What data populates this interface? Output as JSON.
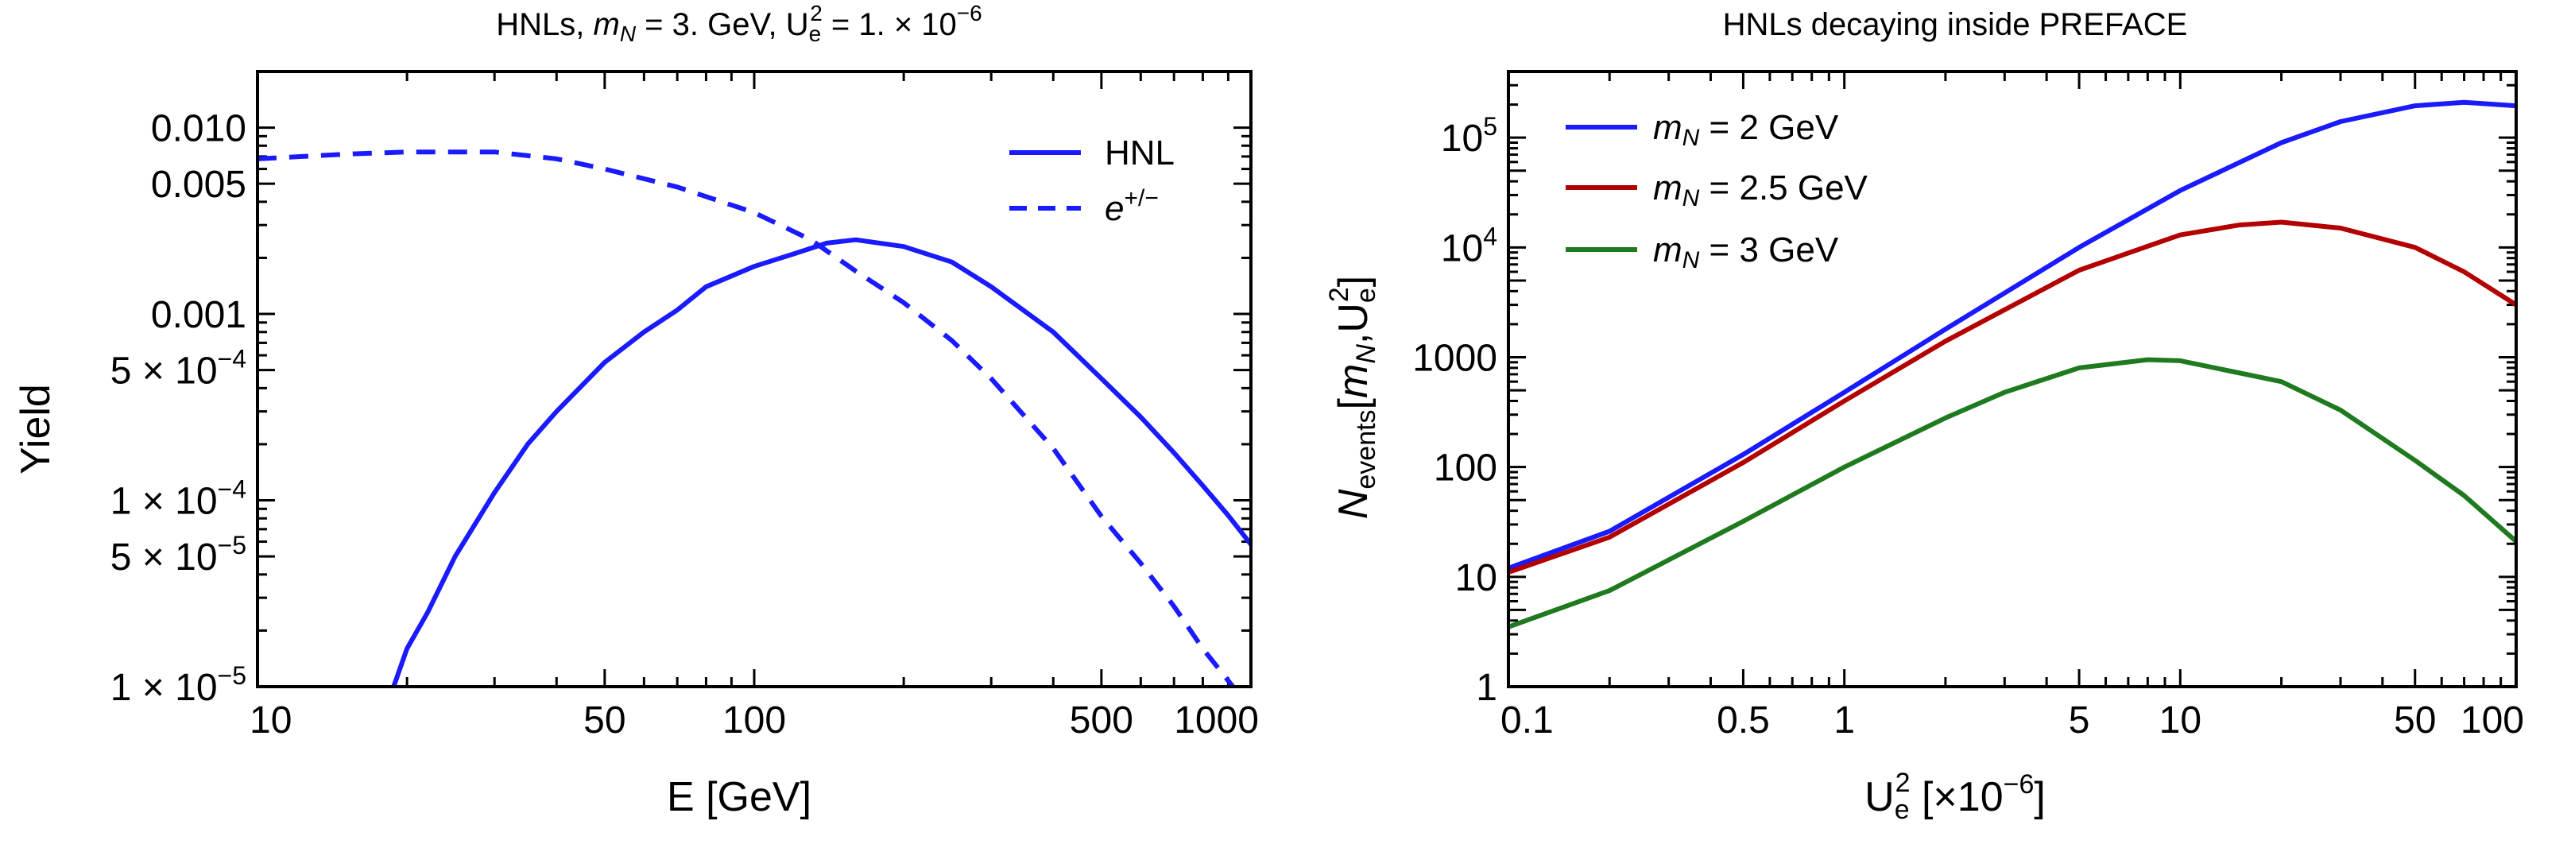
{
  "chart_data": [
    {
      "type": "line",
      "title": {
        "prefix": "HNLs, ",
        "mass_sym": "m",
        "mass_sub": "N",
        "mass_val": " = 3. GeV, U",
        "u_sub": "e",
        "u_sup": "2",
        "u_val": " = 1. × 10",
        "exp": "−6"
      },
      "xlabel": "E [GeV]",
      "ylabel": "Yield",
      "xscale": "log",
      "yscale": "log",
      "xlim": [
        10,
        1000
      ],
      "ylim": [
        1e-05,
        0.02
      ],
      "xticks": [
        {
          "v": 10,
          "label": "10"
        },
        {
          "v": 50,
          "label": "50"
        },
        {
          "v": 100,
          "label": "100"
        },
        {
          "v": 500,
          "label": "500"
        },
        {
          "v": 1000,
          "label": "1000"
        }
      ],
      "yticks": [
        {
          "v": 0.01,
          "label": "0.010"
        },
        {
          "v": 0.005,
          "label": "0.005"
        },
        {
          "v": 0.001,
          "label": "0.001"
        },
        {
          "v": 0.0005,
          "mant": "5 × 10",
          "exp": "−4"
        },
        {
          "v": 0.0001,
          "mant": "1 × 10",
          "exp": "−4"
        },
        {
          "v": 5e-05,
          "mant": "5 × 10",
          "exp": "−5"
        },
        {
          "v": 1e-05,
          "mant": "1 × 10",
          "exp": "−5"
        }
      ],
      "legend_position": "top-right",
      "series": [
        {
          "name": "HNL",
          "color": "#1a1aff",
          "dash": false,
          "x": [
            18.8,
            20,
            22,
            25,
            30,
            35,
            40,
            50,
            60,
            70,
            80,
            100,
            120,
            140,
            160,
            200,
            250,
            300,
            400,
            500,
            600,
            700,
            800,
            900,
            1000
          ],
          "y": [
            1e-05,
            1.6e-05,
            2.5e-05,
            5e-05,
            0.00011,
            0.0002,
            0.0003,
            0.00055,
            0.0008,
            0.00105,
            0.0014,
            0.0018,
            0.0021,
            0.0024,
            0.0025,
            0.0023,
            0.0019,
            0.0014,
            0.0008,
            0.00045,
            0.00028,
            0.00018,
            0.00012,
            8.3e-05,
            5.8e-05
          ]
        },
        {
          "name": "e+/−",
          "label_base": "e",
          "label_sup": "+/−",
          "color": "#1a1aff",
          "dash": true,
          "x": [
            10,
            15,
            20,
            30,
            40,
            50,
            70,
            100,
            130,
            160,
            200,
            250,
            300,
            400,
            500,
            600,
            700,
            800,
            920
          ],
          "y": [
            0.0068,
            0.0072,
            0.0074,
            0.0074,
            0.0068,
            0.006,
            0.0048,
            0.0035,
            0.0025,
            0.0017,
            0.00115,
            0.00072,
            0.00045,
            0.00019,
            8.2e-05,
            4.6e-05,
            2.7e-05,
            1.6e-05,
            1e-05
          ]
        }
      ]
    },
    {
      "type": "line",
      "title": {
        "text": "HNLs decaying inside PREFACE"
      },
      "xlabel": {
        "base": "U",
        "sub": "e",
        "sup": "2",
        "rest": " [×10",
        "exp": "−6",
        "close": "]"
      },
      "ylabel": {
        "base": "N",
        "sub": "events",
        "open": "[",
        "m": "m",
        "msub": "N",
        "comma": ",U",
        "usub": "e",
        "usup": "2",
        "close": "]"
      },
      "xscale": "log",
      "yscale": "log",
      "xlim": [
        0.1,
        100
      ],
      "ylim": [
        1,
        400000
      ],
      "xticks": [
        {
          "v": 0.1,
          "label": "0.1"
        },
        {
          "v": 0.5,
          "label": "0.5"
        },
        {
          "v": 1,
          "label": "1"
        },
        {
          "v": 5,
          "label": "5"
        },
        {
          "v": 10,
          "label": "10"
        },
        {
          "v": 50,
          "label": "50"
        },
        {
          "v": 100,
          "label": "100"
        }
      ],
      "yticks": [
        {
          "v": 1,
          "label": "1"
        },
        {
          "v": 10,
          "label": "10"
        },
        {
          "v": 100,
          "label": "100"
        },
        {
          "v": 1000,
          "label": "1000"
        },
        {
          "v": 10000,
          "mant": "10",
          "exp": "4"
        },
        {
          "v": 100000,
          "mant": "10",
          "exp": "5"
        }
      ],
      "legend_position": "top-left",
      "series": [
        {
          "name": "m_N = 2 GeV",
          "sym": "m",
          "sub": "N",
          "rest": " = 2 GeV",
          "color": "#1a1aff",
          "x": [
            0.1,
            0.2,
            0.5,
            1,
            2,
            5,
            10,
            20,
            30,
            50,
            70,
            100
          ],
          "y": [
            12,
            26,
            130,
            480,
            1800,
            10000,
            33000,
            90000,
            140000,
            195000,
            210000,
            195000
          ]
        },
        {
          "name": "m_N = 2.5 GeV",
          "sym": "m",
          "sub": "N",
          "rest": " = 2.5 GeV",
          "color": "#b30000",
          "x": [
            0.1,
            0.2,
            0.5,
            1,
            2,
            5,
            10,
            15,
            20,
            30,
            50,
            70,
            100
          ],
          "y": [
            11,
            23,
            110,
            400,
            1400,
            6200,
            13000,
            16000,
            17000,
            15000,
            10000,
            6000,
            3000
          ]
        },
        {
          "name": "m_N = 3 GeV",
          "sym": "m",
          "sub": "N",
          "rest": " = 3 GeV",
          "color": "#1f7a1f",
          "x": [
            0.1,
            0.2,
            0.5,
            1,
            2,
            3,
            5,
            8,
            10,
            20,
            30,
            50,
            70,
            100
          ],
          "y": [
            3.5,
            7.5,
            32,
            100,
            280,
            480,
            800,
            950,
            930,
            600,
            330,
            115,
            55,
            21
          ]
        }
      ]
    }
  ]
}
